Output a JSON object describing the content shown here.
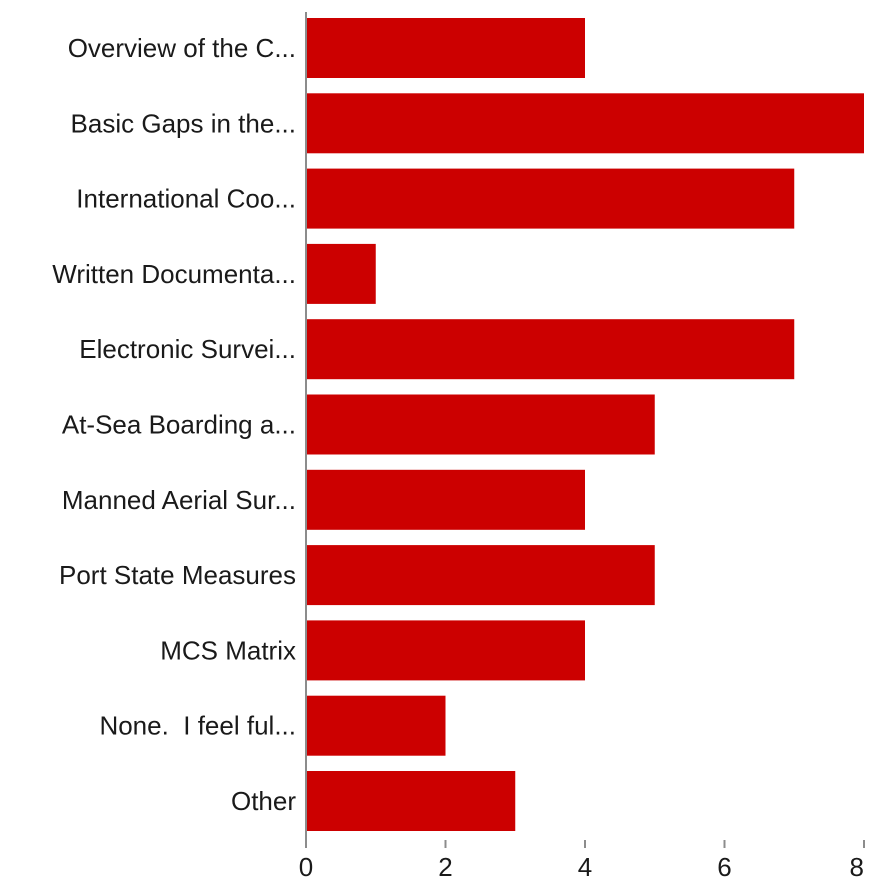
{
  "chart_data": {
    "type": "bar",
    "orientation": "horizontal",
    "categories": [
      "Overview of the C...",
      "Basic Gaps in the...",
      "International Coo...",
      "Written Documenta...",
      "Electronic Survei...",
      "At-Sea Boarding a...",
      "Manned Aerial Sur...",
      "Port State Measures",
      "MCS Matrix",
      "None.  I feel ful...",
      "Other"
    ],
    "values": [
      4,
      8,
      7,
      1,
      7,
      5,
      4,
      5,
      4,
      2,
      3
    ],
    "xlim": [
      0,
      8
    ],
    "xticks": [
      "0",
      "2",
      "4",
      "6",
      "8"
    ],
    "title": "",
    "xlabel": "",
    "ylabel": "",
    "grid": false,
    "legend": "none",
    "bar_color": "#cc0000"
  }
}
